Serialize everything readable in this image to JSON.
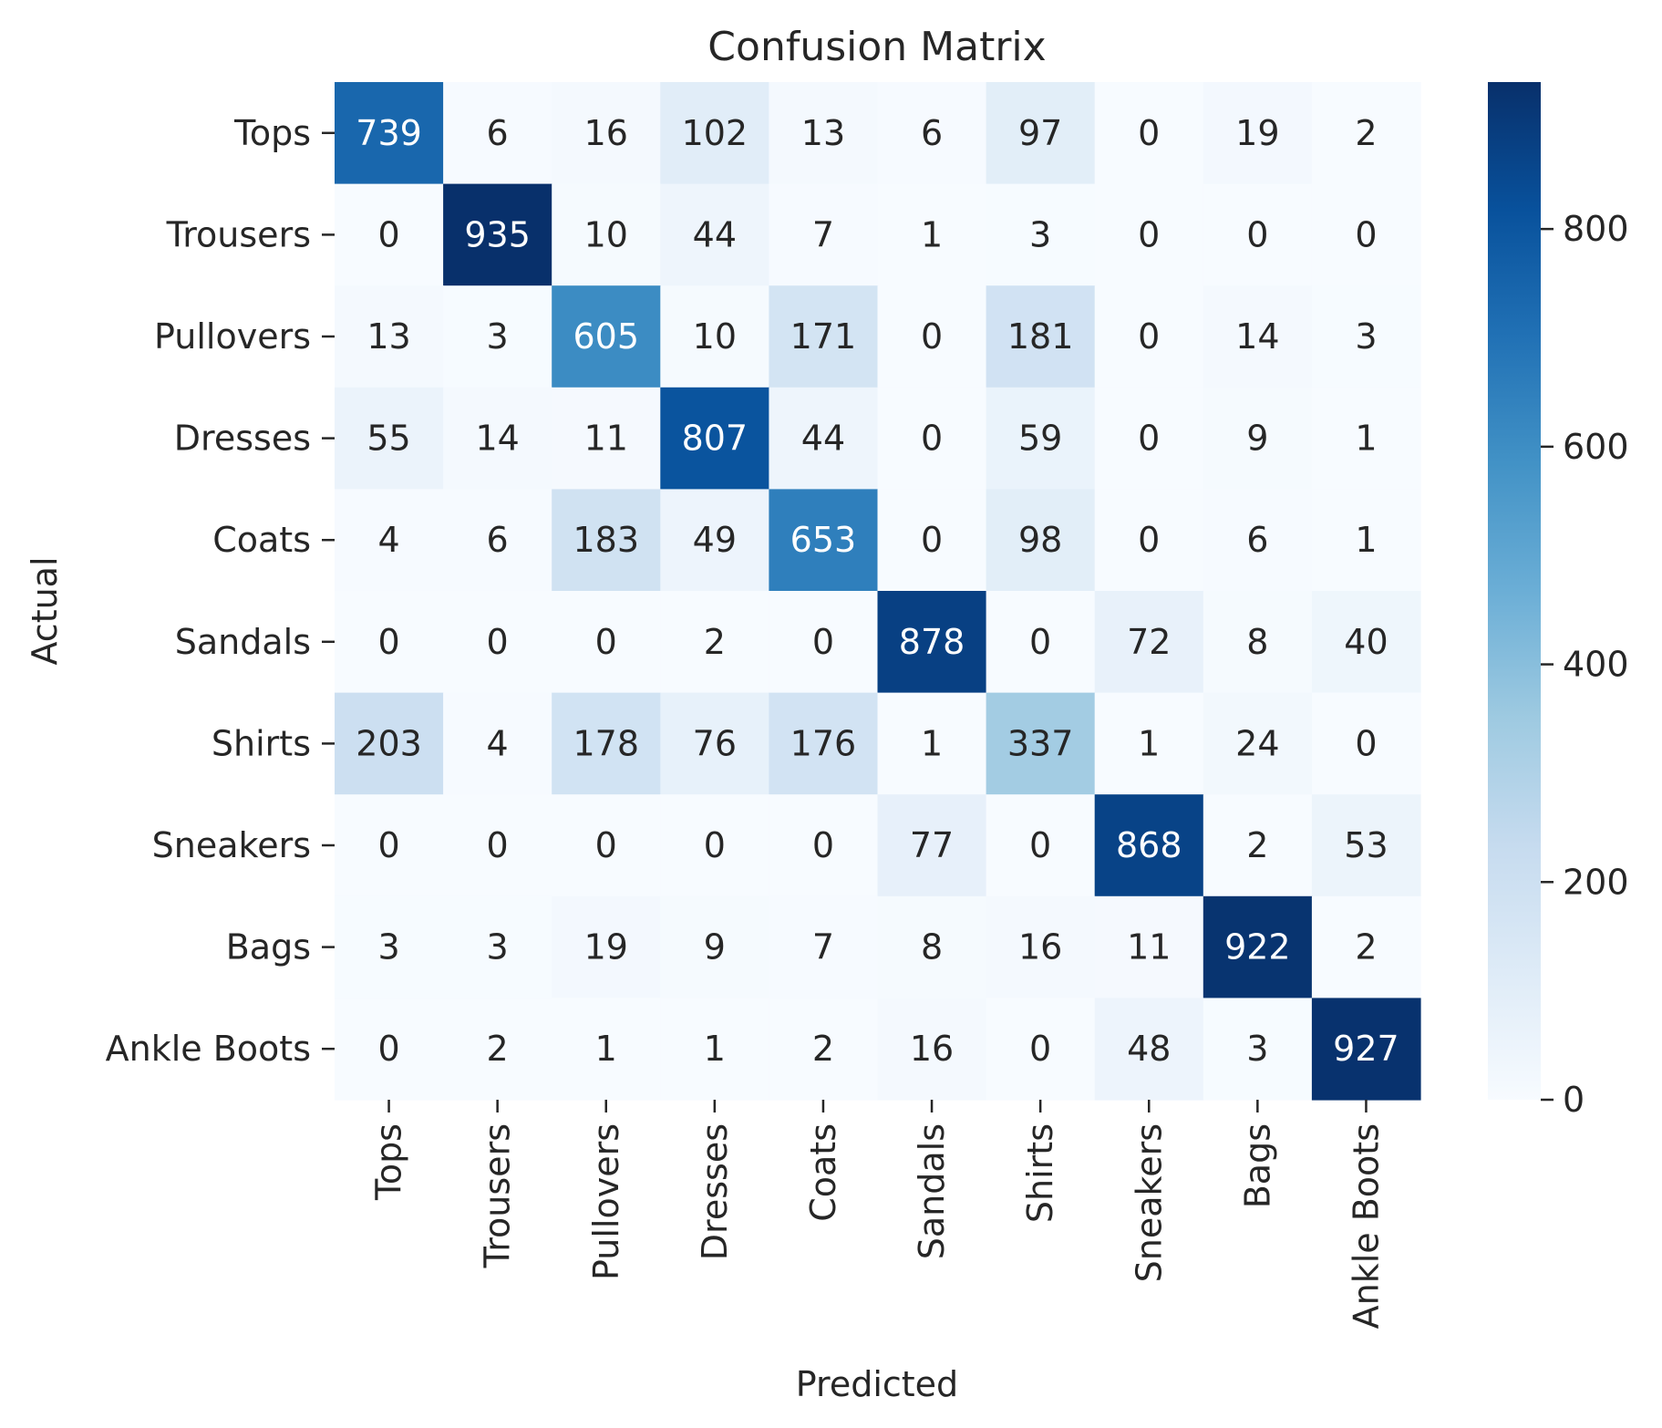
{
  "chart_data": {
    "type": "heatmap",
    "title": "Confusion Matrix",
    "xlabel": "Predicted",
    "ylabel": "Actual",
    "x_categories": [
      "Tops",
      "Trousers",
      "Pullovers",
      "Dresses",
      "Coats",
      "Sandals",
      "Shirts",
      "Sneakers",
      "Bags",
      "Ankle Boots"
    ],
    "y_categories": [
      "Tops",
      "Trousers",
      "Pullovers",
      "Dresses",
      "Coats",
      "Sandals",
      "Shirts",
      "Sneakers",
      "Bags",
      "Ankle Boots"
    ],
    "values": [
      [
        739,
        6,
        16,
        102,
        13,
        6,
        97,
        0,
        19,
        2
      ],
      [
        0,
        935,
        10,
        44,
        7,
        1,
        3,
        0,
        0,
        0
      ],
      [
        13,
        3,
        605,
        10,
        171,
        0,
        181,
        0,
        14,
        3
      ],
      [
        55,
        14,
        11,
        807,
        44,
        0,
        59,
        0,
        9,
        1
      ],
      [
        4,
        6,
        183,
        49,
        653,
        0,
        98,
        0,
        6,
        1
      ],
      [
        0,
        0,
        0,
        2,
        0,
        878,
        0,
        72,
        8,
        40
      ],
      [
        203,
        4,
        178,
        76,
        176,
        1,
        337,
        1,
        24,
        0
      ],
      [
        0,
        0,
        0,
        0,
        0,
        77,
        0,
        868,
        2,
        53
      ],
      [
        3,
        3,
        19,
        9,
        7,
        8,
        16,
        11,
        922,
        2
      ],
      [
        0,
        2,
        1,
        1,
        2,
        16,
        0,
        48,
        3,
        927
      ]
    ],
    "colormap": "Blues",
    "vmin": 0,
    "vmax": 935,
    "colorbar_ticks": [
      0,
      200,
      400,
      600,
      800
    ],
    "annotations": true,
    "grid": false
  }
}
